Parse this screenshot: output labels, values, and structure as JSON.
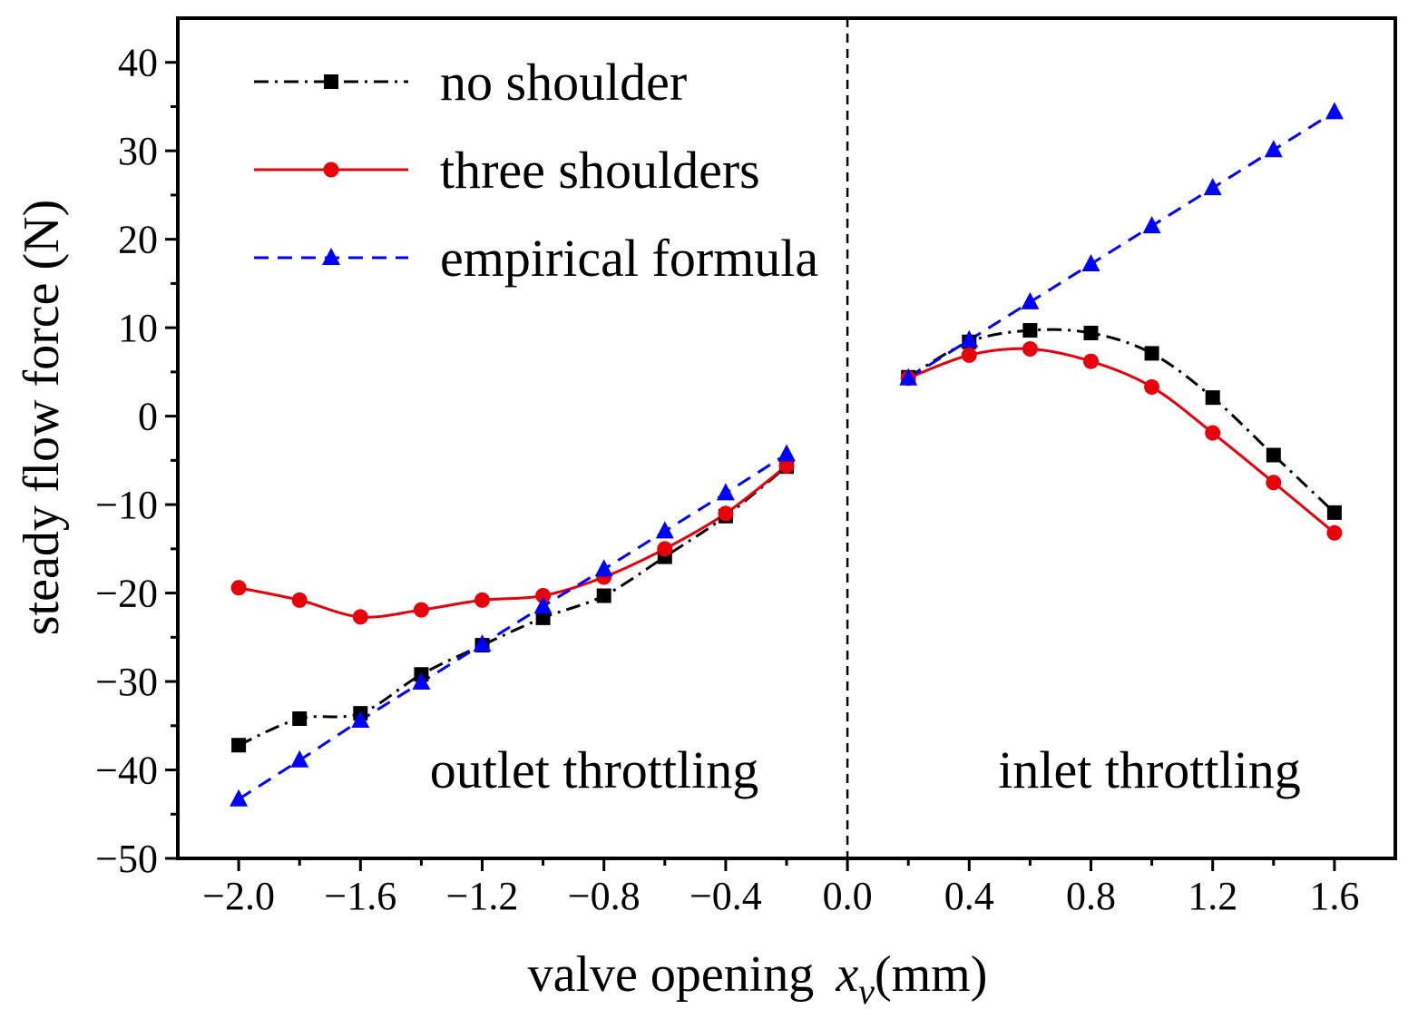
{
  "chart_data": {
    "type": "line",
    "title": "",
    "xlabel": "valve opening",
    "xlabel_var": "x",
    "xlabel_sub": "v",
    "xlabel_unit": "(mm)",
    "ylabel": "steady flow force  (N)",
    "xlim": [
      -2.2,
      1.8
    ],
    "ylim": [
      -50,
      45
    ],
    "xticks": [
      "−2.0",
      "−1.6",
      "−1.2",
      "−0.8",
      "−0.4",
      "0.0",
      "0.4",
      "0.8",
      "1.2",
      "1.6"
    ],
    "yticks": [
      "−50",
      "−40",
      "−30",
      "−20",
      "−10",
      "0",
      "10",
      "20",
      "30",
      "40"
    ],
    "legend_position": "top-left",
    "annotations": [
      "outlet throttling",
      "inlet throttling"
    ],
    "divider_x": 0,
    "series": [
      {
        "name": "no shoulder",
        "color": "#000000",
        "marker": "square",
        "line_style": "dash-dot",
        "segments": [
          {
            "x": [
              -2.0,
              -1.8,
              -1.6,
              -1.4,
              -1.2,
              -1.0,
              -0.8,
              -0.6,
              -0.4,
              -0.2
            ],
            "y": [
              -37.2,
              -34.2,
              -33.6,
              -29.2,
              -25.9,
              -22.8,
              -20.3,
              -15.9,
              -11.3,
              -5.7
            ]
          },
          {
            "x": [
              0.2,
              0.4,
              0.6,
              0.8,
              1.0,
              1.2,
              1.4,
              1.6
            ],
            "y": [
              4.4,
              8.4,
              9.7,
              9.4,
              7.1,
              2.1,
              -4.4,
              -10.9
            ]
          }
        ]
      },
      {
        "name": "three shoulders",
        "color": "#e8000b",
        "marker": "circle",
        "line_style": "solid",
        "segments": [
          {
            "x": [
              -2.0,
              -1.8,
              -1.6,
              -1.4,
              -1.2,
              -1.0,
              -0.8,
              -0.6,
              -0.4,
              -0.2
            ],
            "y": [
              -19.4,
              -20.8,
              -22.7,
              -21.9,
              -20.8,
              -20.3,
              -18.2,
              -15.0,
              -11.0,
              -5.6
            ]
          },
          {
            "x": [
              0.2,
              0.4,
              0.6,
              0.8,
              1.0,
              1.2,
              1.4,
              1.6
            ],
            "y": [
              4.3,
              6.9,
              7.6,
              6.2,
              3.3,
              -1.9,
              -7.5,
              -13.2
            ]
          }
        ]
      },
      {
        "name": "empirical formula",
        "color": "#0000ff",
        "marker": "triangle",
        "line_style": "dashed",
        "segments": [
          {
            "x": [
              -2.0,
              -1.8,
              -1.6,
              -1.4,
              -1.2,
              -1.0,
              -0.8,
              -0.6,
              -0.4,
              -0.2
            ],
            "y": [
              -43.3,
              -38.9,
              -34.4,
              -30.1,
              -25.8,
              -21.5,
              -17.3,
              -13.0,
              -8.7,
              -4.3
            ]
          },
          {
            "x": [
              0.2,
              0.4,
              0.6,
              0.8,
              1.0,
              1.2,
              1.4,
              1.6
            ],
            "y": [
              4.3,
              8.6,
              12.9,
              17.2,
              21.5,
              25.8,
              30.1,
              34.4
            ]
          }
        ]
      }
    ]
  }
}
